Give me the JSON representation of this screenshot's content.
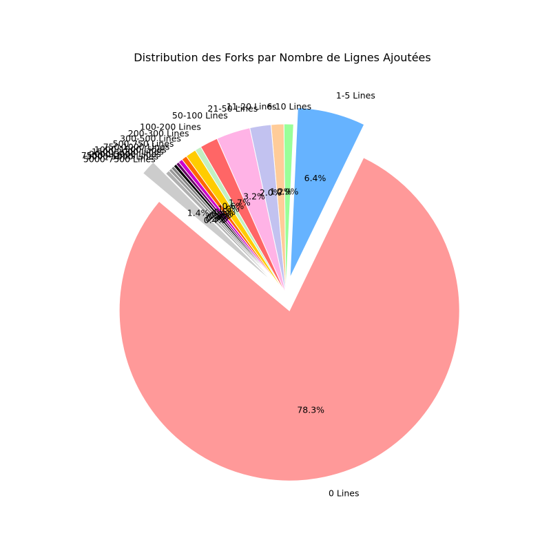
{
  "chart_data": {
    "type": "pie",
    "title": "Distribution des Forks par Nombre de Lignes Ajoutées",
    "categories": [
      "0 Lines",
      "1-5 Lines",
      "6-10 Lines",
      "11-20 Lines",
      "21-50 Lines",
      "50-100 Lines",
      "100-200 Lines",
      "200-300 Lines",
      "300-500 Lines",
      "500-750 Lines",
      "750-1000 Lines",
      "1000-1500 Lines",
      "1500-2000 Lines",
      "2000-3000 Lines",
      "3000-5000 Lines",
      "5000-7500 Lines",
      "7500+ Lines"
    ],
    "values": [
      78.3,
      6.4,
      0.9,
      1.2,
      2.0,
      3.2,
      1.7,
      0.6,
      1.0,
      0.5,
      0.4,
      0.3,
      0.3,
      0.3,
      0.3,
      0.4,
      1.4
    ],
    "value_labels": [
      "78.3%",
      "6.4%",
      "0.9%",
      "1.2%",
      "2.0%",
      "3.2%",
      "1.7%",
      "0.6%",
      "1.0%",
      "0.5%",
      "0.4%",
      "0.3%",
      "0.3%",
      "0.3%",
      "0.3%",
      "0.4%",
      "1.4%"
    ],
    "colors": [
      "#ff9999",
      "#66b3ff",
      "#99ff99",
      "#ffcc99",
      "#c2c2f0",
      "#ffb3e6",
      "#ff6666",
      "#c2f0c2",
      "#ffcc00",
      "#ff6600",
      "#cc00cc",
      "#660066",
      "#000000",
      "#808080",
      "#999999",
      "#b0b0b0",
      "#cccccc"
    ],
    "exploded": [
      "0 Lines",
      "1-5 Lines",
      "7500+ Lines"
    ],
    "legend": "none"
  }
}
